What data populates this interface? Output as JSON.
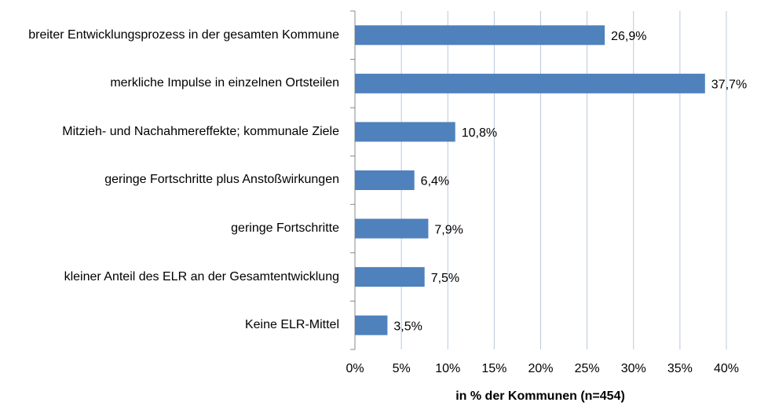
{
  "chart_data": {
    "type": "bar",
    "orientation": "horizontal",
    "categories": [
      "breiter Entwicklungsprozess in der gesamten Kommune",
      "merkliche Impulse in einzelnen Ortsteilen",
      "Mitzieh- und Nachahmereffekte; kommunale Ziele",
      "geringe Fortschritte plus Anstoßwirkungen",
      "geringe Fortschritte",
      "kleiner Anteil des ELR an der Gesamtentwicklung",
      "Keine ELR-Mittel"
    ],
    "values": [
      26.9,
      37.7,
      10.8,
      6.4,
      7.9,
      7.5,
      3.5
    ],
    "value_labels": [
      "26,9%",
      "37,7%",
      "10,8%",
      "6,4%",
      "7,9%",
      "7,5%",
      "3,5%"
    ],
    "color": "#4f81bd",
    "x_label": "in % der Kommunen (n=454)",
    "xlim": [
      0,
      40
    ],
    "xticks": [
      {
        "value": 0,
        "label": "0%"
      },
      {
        "value": 5,
        "label": "5%"
      },
      {
        "value": 10,
        "label": "10%"
      },
      {
        "value": 15,
        "label": "15%"
      },
      {
        "value": 20,
        "label": "20%"
      },
      {
        "value": 25,
        "label": "25%"
      },
      {
        "value": 30,
        "label": "30%"
      },
      {
        "value": 35,
        "label": "35%"
      },
      {
        "value": 40,
        "label": "40%"
      }
    ],
    "grid": true
  }
}
